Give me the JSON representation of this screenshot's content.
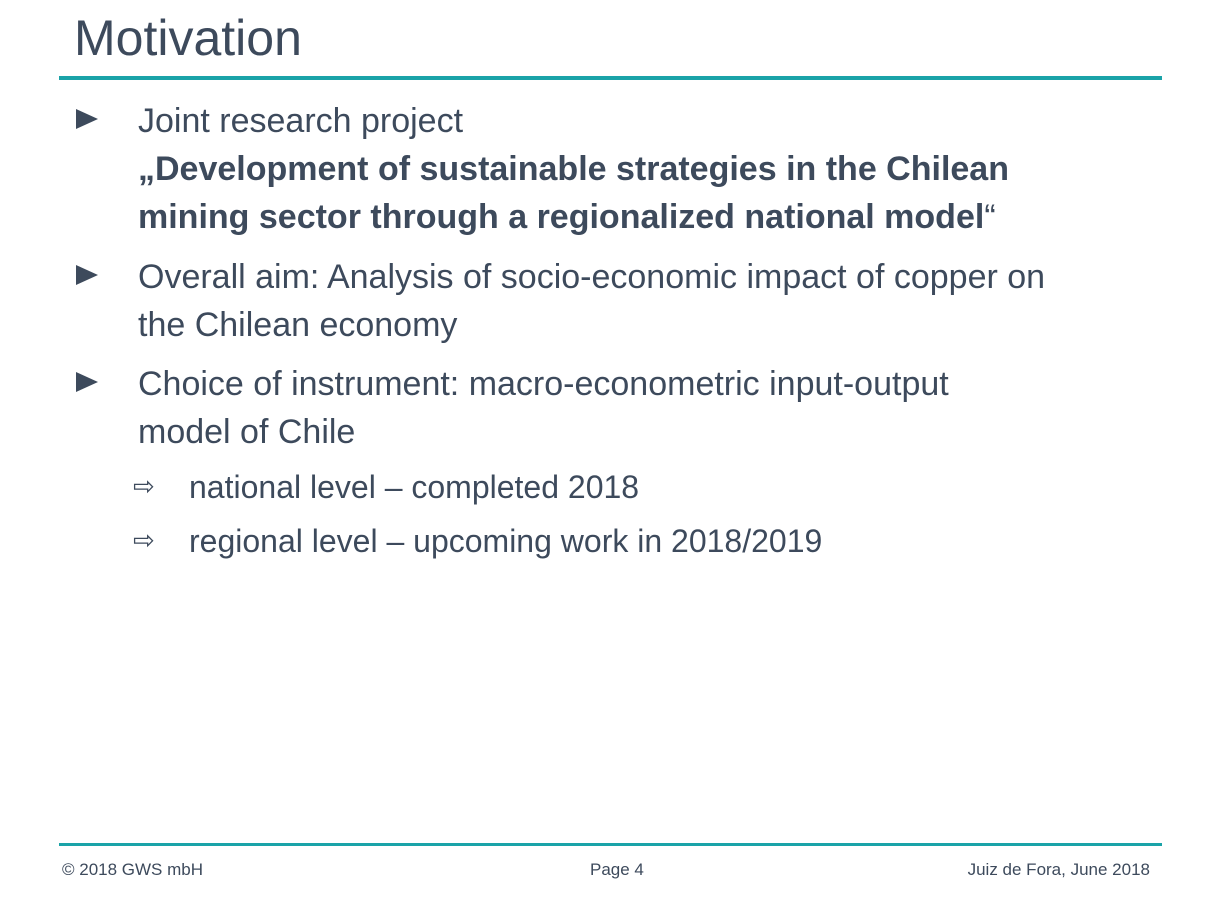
{
  "slide": {
    "title": "Motivation"
  },
  "bullets": [
    {
      "lines": [
        "Joint research project"
      ],
      "quote_open": "„",
      "bold_lines": [
        "Development of sustainable strategies in the Chilean",
        "mining sector through a regionalized national model"
      ],
      "quote_close": "“"
    },
    {
      "lines": [
        "Overall aim: Analysis of socio-economic impact of copper on",
        "the Chilean economy"
      ]
    },
    {
      "lines": [
        "Choice of instrument: macro-econometric input-output",
        "model of Chile"
      ],
      "sub_items": [
        "national level – completed 2018",
        "regional level – upcoming work in 2018/2019"
      ]
    }
  ],
  "icons": {
    "bullet": "triangle-right-icon",
    "sub_bullet": "hollow-arrow-right-icon"
  },
  "colors": {
    "accent": "#1aa3a8",
    "text": "#3d4a5c"
  },
  "footer": {
    "copyright": "© 2018 GWS mbH",
    "page": "Page 4",
    "place_date": "Juiz de Fora, June 2018"
  }
}
